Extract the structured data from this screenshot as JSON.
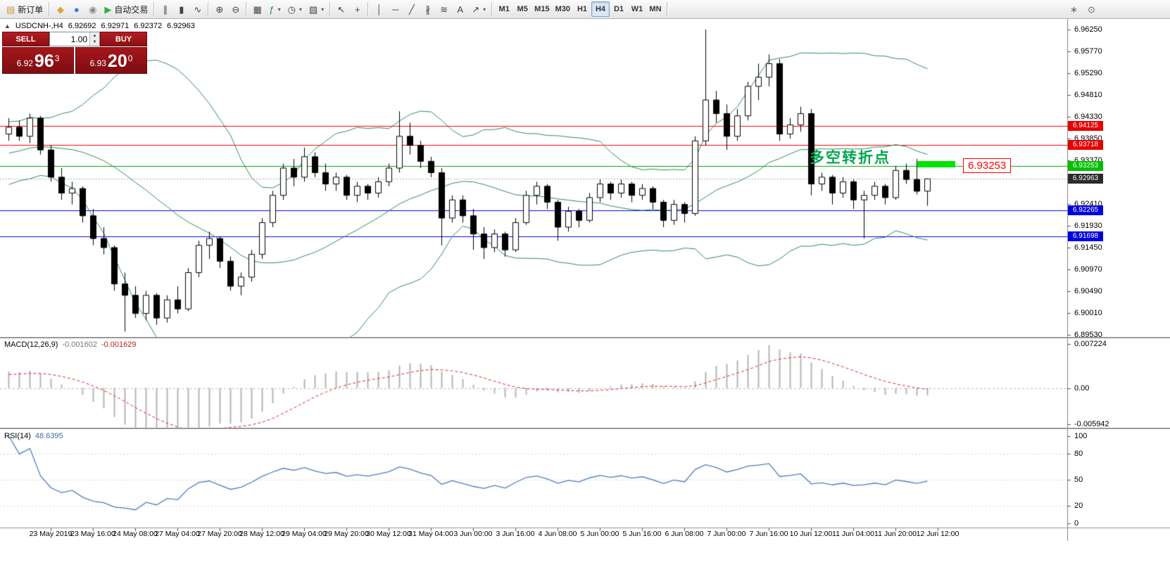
{
  "toolbar": {
    "timeframes": [
      "M1",
      "M5",
      "M15",
      "M30",
      "H1",
      "H4",
      "D1",
      "W1",
      "MN"
    ],
    "active_timeframe": "H4",
    "groups": [
      {
        "items": [
          {
            "name": "new-order-button",
            "glyph": "▤",
            "glyph_color": "#c89b3c",
            "label": "新订单"
          }
        ]
      },
      {
        "items": [
          {
            "name": "metaeditor-button",
            "glyph": "◆",
            "glyph_color": "#e0a23c"
          },
          {
            "name": "algo-community-button",
            "glyph": "●",
            "glyph_color": "#3b7bd4"
          },
          {
            "name": "support-button",
            "glyph": "◉",
            "glyph_color": "#8a8a8a"
          },
          {
            "name": "auto-trading-button",
            "glyph": "▶",
            "glyph_color": "#2fae4a",
            "label": "自动交易"
          }
        ]
      },
      {
        "items": [
          {
            "name": "bar-chart-type-button",
            "glyph": "∥",
            "glyph_color": "#444"
          },
          {
            "name": "candlestick-type-button",
            "glyph": "▮",
            "glyph_color": "#444"
          },
          {
            "name": "line-chart-type-button",
            "glyph": "∿",
            "glyph_color": "#444"
          }
        ]
      },
      {
        "items": [
          {
            "name": "zoom-in-button",
            "glyph": "⊕",
            "glyph_color": "#444"
          },
          {
            "name": "zoom-out-button",
            "glyph": "⊖",
            "glyph_color": "#444"
          }
        ]
      },
      {
        "items": [
          {
            "name": "tile-windows-button",
            "glyph": "▦",
            "glyph_color": "#444"
          },
          {
            "name": "indicators-button",
            "glyph": "ƒ",
            "glyph_color": "#2c8c3c",
            "caret": true
          },
          {
            "name": "periods-button",
            "glyph": "◷",
            "glyph_color": "#444",
            "caret": true
          },
          {
            "name": "templates-button",
            "glyph": "▧",
            "glyph_color": "#444",
            "caret": true
          }
        ]
      },
      {
        "items": [
          {
            "name": "cursor-button",
            "glyph": "↖",
            "glyph_color": "#444"
          },
          {
            "name": "crosshair-button",
            "glyph": "+",
            "glyph_color": "#444"
          }
        ]
      },
      {
        "items": [
          {
            "name": "vertical-line-button",
            "glyph": "│",
            "glyph_color": "#444"
          },
          {
            "name": "horizontal-line-button",
            "glyph": "─",
            "glyph_color": "#444"
          },
          {
            "name": "trendline-button",
            "glyph": "╱",
            "glyph_color": "#444"
          },
          {
            "name": "channel-button",
            "glyph": "∦",
            "glyph_color": "#444"
          },
          {
            "name": "fibonacci-button",
            "glyph": "≋",
            "glyph_color": "#444"
          },
          {
            "name": "text-tool-button",
            "glyph": "A",
            "glyph_color": "#444"
          },
          {
            "name": "arrows-tool-button",
            "glyph": "↗",
            "glyph_color": "#444",
            "caret": true
          }
        ]
      }
    ],
    "right_items": [
      {
        "name": "favorites-button",
        "glyph": "∗",
        "glyph_color": "#666"
      },
      {
        "name": "search-button",
        "glyph": "⊙",
        "glyph_color": "#666"
      }
    ]
  },
  "chart": {
    "direction_arrow": "▲",
    "symbol_label": "USDCNH-,H4",
    "ohlc": {
      "open": "6.92692",
      "high": "6.92971",
      "low": "6.92372",
      "close": "6.92963"
    },
    "trade_panel": {
      "sell_label": "SELL",
      "buy_label": "BUY",
      "volume": "1.00",
      "spin_up_glyph": "▲",
      "spin_down_glyph": "▼",
      "sell_price": {
        "prefix": "6.92",
        "big": "96",
        "sup": "3"
      },
      "buy_price": {
        "prefix": "6.93",
        "big": "20",
        "sup": "0"
      }
    },
    "annotation": {
      "text": "多空转折点",
      "text_color": "#00a74e",
      "price_label": "6.93253",
      "highlight_color": "#00e400",
      "callout_color": "#ff0000"
    },
    "hlines": [
      {
        "label": "6.94125",
        "price": 6.94125,
        "color": "#ff0000",
        "tag_bg": "#e60000"
      },
      {
        "label": "6.93718",
        "price": 6.93718,
        "color": "#ff0000",
        "tag_bg": "#e60000"
      },
      {
        "label": "6.93253",
        "price": 6.93253,
        "color": "#00a000",
        "tag_bg": "#00c000"
      },
      {
        "label": "6.92265",
        "price": 6.92265,
        "color": "#0000ff",
        "tag_bg": "#0000dd"
      },
      {
        "label": "6.91698",
        "price": 6.91698,
        "color": "#0000ff",
        "tag_bg": "#0000dd"
      }
    ],
    "current_price": {
      "label": "6.92963",
      "price": 6.92963,
      "tag_bg": "#2b2b2b"
    },
    "price_axis_labels": [
      "6.96250",
      "6.95770",
      "6.95290",
      "6.94810",
      "6.94330",
      "6.93850",
      "6.93370",
      "6.92410",
      "6.91930",
      "6.91450",
      "6.90970",
      "6.90490",
      "6.90010",
      "6.89530"
    ]
  },
  "chart_data": {
    "type": "candlestick",
    "title": "USDCNH- H4",
    "candle_up_color": "#ffffff",
    "candle_down_color": "#000000",
    "bollinger_color": "#2e8b57",
    "macd_bar_color": "#b4b4b4",
    "macd_signal_color": "#e02020",
    "rsi_line_color": "#4a7ebb",
    "x_labels": [
      "23 May 2019",
      "23 May 16:00",
      "24 May 08:00",
      "27 May 04:00",
      "27 May 20:00",
      "28 May 12:00",
      "29 May 04:00",
      "29 May 20:00",
      "30 May 12:00",
      "31 May 04:00",
      "3 Jun 00:00",
      "3 Jun 16:00",
      "4 Jun 08:00",
      "5 Jun 00:00",
      "5 Jun 16:00",
      "6 Jun 08:00",
      "7 Jun 00:00",
      "7 Jun 16:00",
      "10 Jun 12:00",
      "11 Jun 04:00",
      "11 Jun 20:00",
      "12 Jun 12:00"
    ],
    "ohlc": [
      [
        6.9395,
        6.943,
        6.938,
        6.941
      ],
      [
        6.941,
        6.9425,
        6.938,
        6.939
      ],
      [
        6.939,
        6.944,
        6.9375,
        6.943
      ],
      [
        6.943,
        6.9435,
        6.935,
        6.936
      ],
      [
        6.936,
        6.937,
        6.929,
        6.93
      ],
      [
        6.93,
        6.932,
        6.925,
        6.9265
      ],
      [
        6.9265,
        6.929,
        6.924,
        6.9275
      ],
      [
        6.9275,
        6.928,
        6.92,
        6.9215
      ],
      [
        6.9215,
        6.923,
        6.915,
        6.9165
      ],
      [
        6.9165,
        6.919,
        6.913,
        6.9145
      ],
      [
        6.9145,
        6.915,
        6.905,
        6.9065
      ],
      [
        6.9065,
        6.909,
        6.896,
        6.904
      ],
      [
        6.904,
        6.906,
        6.899,
        6.9
      ],
      [
        6.9,
        6.905,
        6.8985,
        6.904
      ],
      [
        6.904,
        6.9045,
        6.8975,
        6.899
      ],
      [
        6.899,
        6.904,
        6.898,
        6.903
      ],
      [
        6.903,
        6.906,
        6.9,
        6.901
      ],
      [
        6.901,
        6.91,
        6.9005,
        6.909
      ],
      [
        6.909,
        6.916,
        6.908,
        6.915
      ],
      [
        6.915,
        6.918,
        6.912,
        6.9165
      ],
      [
        6.9165,
        6.917,
        6.91,
        6.9115
      ],
      [
        6.9115,
        6.9125,
        6.905,
        6.906
      ],
      [
        6.906,
        6.909,
        6.904,
        6.908
      ],
      [
        6.908,
        6.914,
        6.907,
        6.913
      ],
      [
        6.913,
        6.921,
        6.912,
        6.92
      ],
      [
        6.92,
        6.927,
        6.919,
        6.926
      ],
      [
        6.926,
        6.933,
        6.925,
        6.932
      ],
      [
        6.932,
        6.934,
        6.928,
        6.93
      ],
      [
        6.93,
        6.9365,
        6.929,
        6.9345
      ],
      [
        6.9345,
        6.9355,
        6.93,
        6.931
      ],
      [
        6.931,
        6.933,
        6.927,
        6.9285
      ],
      [
        6.9285,
        6.931,
        6.927,
        6.93
      ],
      [
        6.93,
        6.9305,
        6.925,
        6.926
      ],
      [
        6.926,
        6.929,
        6.9245,
        6.928
      ],
      [
        6.928,
        6.9285,
        6.925,
        6.9265
      ],
      [
        6.9265,
        6.93,
        6.9255,
        6.929
      ],
      [
        6.929,
        6.933,
        6.928,
        6.932
      ],
      [
        6.932,
        6.9445,
        6.931,
        6.939
      ],
      [
        6.939,
        6.942,
        6.935,
        6.937
      ],
      [
        6.937,
        6.938,
        6.932,
        6.9335
      ],
      [
        6.9335,
        6.9345,
        6.93,
        6.931
      ],
      [
        6.931,
        6.932,
        6.915,
        6.921
      ],
      [
        6.921,
        6.926,
        6.92,
        6.925
      ],
      [
        6.925,
        6.926,
        6.92,
        6.9215
      ],
      [
        6.9215,
        6.923,
        6.914,
        6.9175
      ],
      [
        6.9175,
        6.919,
        6.912,
        6.9145
      ],
      [
        6.9145,
        6.9185,
        6.9135,
        6.9175
      ],
      [
        6.9175,
        6.918,
        6.9125,
        6.914
      ],
      [
        6.914,
        6.921,
        6.9135,
        6.92
      ],
      [
        6.92,
        6.927,
        6.9195,
        6.926
      ],
      [
        6.926,
        6.929,
        6.924,
        6.928
      ],
      [
        6.928,
        6.9285,
        6.923,
        6.9245
      ],
      [
        6.9245,
        6.925,
        6.916,
        6.919
      ],
      [
        6.919,
        6.9235,
        6.918,
        6.9225
      ],
      [
        6.9225,
        6.923,
        6.919,
        6.9205
      ],
      [
        6.9205,
        6.9265,
        6.92,
        6.9255
      ],
      [
        6.9255,
        6.9295,
        6.9245,
        6.9285
      ],
      [
        6.9285,
        6.929,
        6.925,
        6.9265
      ],
      [
        6.9265,
        6.9295,
        6.9255,
        6.9285
      ],
      [
        6.9285,
        6.929,
        6.9245,
        6.926
      ],
      [
        6.926,
        6.9285,
        6.925,
        6.9275
      ],
      [
        6.9275,
        6.928,
        6.923,
        6.9245
      ],
      [
        6.9245,
        6.925,
        6.919,
        6.9205
      ],
      [
        6.9205,
        6.925,
        6.9195,
        6.924
      ],
      [
        6.924,
        6.9245,
        6.92,
        6.922
      ],
      [
        6.922,
        6.939,
        6.9215,
        6.938
      ],
      [
        6.938,
        6.9625,
        6.937,
        6.947
      ],
      [
        6.947,
        6.949,
        6.942,
        6.944
      ],
      [
        6.944,
        6.946,
        6.936,
        6.939
      ],
      [
        6.939,
        6.945,
        6.938,
        6.9435
      ],
      [
        6.9435,
        6.951,
        6.9425,
        6.95
      ],
      [
        6.95,
        6.955,
        6.947,
        6.952
      ],
      [
        6.952,
        6.957,
        6.95,
        6.955
      ],
      [
        6.955,
        6.956,
        6.938,
        6.9395
      ],
      [
        6.9395,
        6.943,
        6.9385,
        6.9415
      ],
      [
        6.9415,
        6.9455,
        6.94,
        6.944
      ],
      [
        6.944,
        6.945,
        6.926,
        6.9285
      ],
      [
        6.9285,
        6.931,
        6.927,
        6.93
      ],
      [
        6.93,
        6.9305,
        6.924,
        6.9265
      ],
      [
        6.9265,
        6.93,
        6.9255,
        6.929
      ],
      [
        6.929,
        6.9295,
        6.923,
        6.925
      ],
      [
        6.925,
        6.927,
        6.9165,
        6.926
      ],
      [
        6.926,
        6.929,
        6.925,
        6.928
      ],
      [
        6.928,
        6.9285,
        6.924,
        6.9255
      ],
      [
        6.9255,
        6.9325,
        6.925,
        6.9315
      ],
      [
        6.9315,
        6.933,
        6.9285,
        6.9295
      ],
      [
        6.9295,
        6.934,
        6.9262,
        6.9269
      ],
      [
        6.92692,
        6.92971,
        6.92372,
        6.92963
      ]
    ],
    "indicators": {
      "bollinger_bands": {
        "period": 20,
        "deviation": 2
      },
      "macd": {
        "header": "MACD(12,26,9)",
        "main_value": "-0.001602",
        "signal_value": "-0.001629",
        "y_axis_labels": [
          "0.007224",
          "0.00",
          "-0.005942"
        ]
      },
      "rsi": {
        "header": "RSI(14)",
        "value": "48.6395",
        "y_axis_labels": [
          "100",
          "80",
          "50",
          "20",
          "0"
        ]
      }
    }
  }
}
